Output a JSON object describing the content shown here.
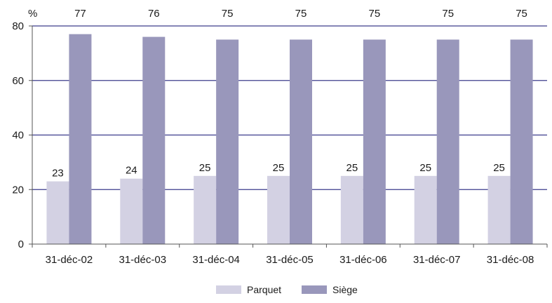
{
  "chart_data": {
    "type": "bar",
    "ylabel": "%",
    "ylim": [
      0,
      80
    ],
    "yticks": [
      0,
      20,
      40,
      60,
      80
    ],
    "grid": true,
    "legend_position": "bottom",
    "categories": [
      "31-déc-02",
      "31-déc-03",
      "31-déc-04",
      "31-déc-05",
      "31-déc-06",
      "31-déc-07",
      "31-déc-08"
    ],
    "series": [
      {
        "name": "Parquet",
        "color": "#d3d1e3",
        "values": [
          23,
          24,
          25,
          25,
          25,
          25,
          25
        ]
      },
      {
        "name": "Siège",
        "color": "#9997bb",
        "values": [
          77,
          76,
          75,
          75,
          75,
          75,
          75
        ]
      }
    ]
  }
}
